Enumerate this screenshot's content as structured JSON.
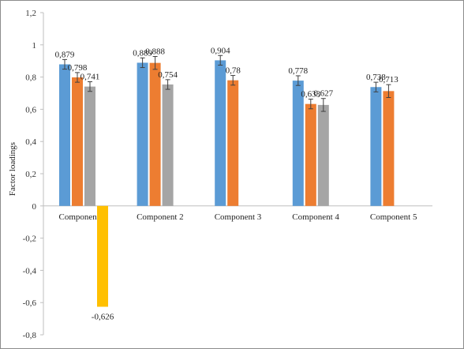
{
  "chart_data": {
    "type": "bar",
    "title": "",
    "xlabel": "",
    "ylabel": "Factor loadings",
    "ylim": [
      -0.8,
      1.2
    ],
    "yticks": [
      1.2,
      1,
      0.8,
      0.6,
      0.4,
      0.2,
      0,
      -0.2,
      -0.4,
      -0.6,
      -0.8
    ],
    "ytick_labels": [
      "1,2",
      "1",
      "0,8",
      "0,6",
      "0,4",
      "0,2",
      "0",
      "-0,2",
      "-0,4",
      "-0,6",
      "-0,8"
    ],
    "grid": false,
    "legend": "none",
    "categories": [
      "Component 1",
      "Component 2",
      "Component 3",
      "Component 4",
      "Component 5"
    ],
    "series": [
      {
        "color": "#5b9bd5",
        "values": [
          0.879,
          0.889,
          0.904,
          0.778,
          0.738
        ],
        "labels": [
          "0,879",
          "0,889",
          "0,904",
          "0,778",
          "0,738"
        ],
        "error": [
          0.03,
          0.03,
          0.03,
          0.03,
          0.03
        ]
      },
      {
        "color": "#ed7d31",
        "values": [
          0.798,
          0.888,
          0.78,
          0.633,
          0.713
        ],
        "labels": [
          "0,798",
          "0,888",
          "0,78",
          "0,633",
          "0,713"
        ],
        "error": [
          0.03,
          0.04,
          0.03,
          0.03,
          0.04
        ]
      },
      {
        "color": "#a5a5a5",
        "values": [
          0.741,
          0.754,
          null,
          0.627,
          null
        ],
        "labels": [
          "0,741",
          "0,754",
          "",
          "0,627",
          ""
        ],
        "error": [
          0.03,
          0.03,
          null,
          0.04,
          null
        ]
      },
      {
        "color": "#ffc000",
        "values": [
          -0.626,
          null,
          null,
          null,
          null
        ],
        "labels": [
          "-0,626",
          "",
          "",
          "",
          ""
        ],
        "error": [
          null,
          null,
          null,
          null,
          null
        ]
      }
    ]
  }
}
